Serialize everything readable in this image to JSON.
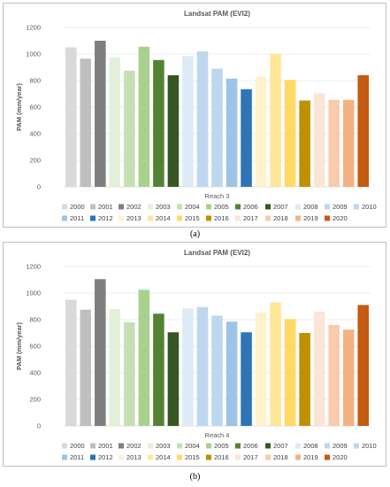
{
  "chart_data": [
    {
      "type": "bar",
      "title": "Landsat PAM (EVI2)",
      "ylabel": "PAM (mm/year)",
      "xlabel": "",
      "category": "Reach 3",
      "ylim": [
        0,
        1200
      ],
      "yticks": [
        0,
        200,
        400,
        600,
        800,
        1000,
        1200
      ],
      "grid": true,
      "legend_position": "bottom",
      "series": [
        {
          "name": "2000",
          "values": [
            1050
          ]
        },
        {
          "name": "2001",
          "values": [
            965
          ]
        },
        {
          "name": "2002",
          "values": [
            1100
          ]
        },
        {
          "name": "2003",
          "values": [
            975
          ]
        },
        {
          "name": "2004",
          "values": [
            875
          ]
        },
        {
          "name": "2005",
          "values": [
            1055
          ]
        },
        {
          "name": "2006",
          "values": [
            955
          ]
        },
        {
          "name": "2007",
          "values": [
            840
          ]
        },
        {
          "name": "2008",
          "values": [
            985
          ]
        },
        {
          "name": "2009",
          "values": [
            1020
          ]
        },
        {
          "name": "2010",
          "values": [
            890
          ]
        },
        {
          "name": "2011",
          "values": [
            815
          ]
        },
        {
          "name": "2012",
          "values": [
            735
          ]
        },
        {
          "name": "2013",
          "values": [
            830
          ]
        },
        {
          "name": "2014",
          "values": [
            1000
          ]
        },
        {
          "name": "2015",
          "values": [
            805
          ]
        },
        {
          "name": "2016",
          "values": [
            650
          ]
        },
        {
          "name": "2017",
          "values": [
            705
          ]
        },
        {
          "name": "2018",
          "values": [
            655
          ]
        },
        {
          "name": "2019",
          "values": [
            655
          ]
        },
        {
          "name": "2020",
          "values": [
            840
          ]
        }
      ]
    },
    {
      "type": "bar",
      "title": "Landsat PAM (EVI2)",
      "ylabel": "PAM (mm/year)",
      "xlabel": "",
      "category": "Reach 4",
      "ylim": [
        0,
        1200
      ],
      "yticks": [
        0,
        200,
        400,
        600,
        800,
        1000,
        1200
      ],
      "grid": true,
      "legend_position": "bottom",
      "series": [
        {
          "name": "2000",
          "values": [
            950
          ]
        },
        {
          "name": "2001",
          "values": [
            875
          ]
        },
        {
          "name": "2002",
          "values": [
            1105
          ]
        },
        {
          "name": "2003",
          "values": [
            880
          ]
        },
        {
          "name": "2004",
          "values": [
            780
          ]
        },
        {
          "name": "2005",
          "values": [
            1025
          ]
        },
        {
          "name": "2006",
          "values": [
            845
          ]
        },
        {
          "name": "2007",
          "values": [
            705
          ]
        },
        {
          "name": "2008",
          "values": [
            885
          ]
        },
        {
          "name": "2009",
          "values": [
            895
          ]
        },
        {
          "name": "2010",
          "values": [
            830
          ]
        },
        {
          "name": "2011",
          "values": [
            785
          ]
        },
        {
          "name": "2012",
          "values": [
            705
          ]
        },
        {
          "name": "2013",
          "values": [
            855
          ]
        },
        {
          "name": "2014",
          "values": [
            930
          ]
        },
        {
          "name": "2015",
          "values": [
            805
          ]
        },
        {
          "name": "2016",
          "values": [
            700
          ]
        },
        {
          "name": "2017",
          "values": [
            860
          ]
        },
        {
          "name": "2018",
          "values": [
            760
          ]
        },
        {
          "name": "2019",
          "values": [
            725
          ]
        },
        {
          "name": "2020",
          "values": [
            910
          ]
        }
      ]
    }
  ],
  "colors": [
    "#d9d9d9",
    "#bfbfbf",
    "#7f7f7f",
    "#e2f0d9",
    "#a9d18e",
    "#548235",
    "#375623",
    "#ddebf7",
    "#bdd7ee",
    "#9dc3e6",
    "#2e75b6",
    "#fff2cc",
    "#ffe699",
    "#ffd966",
    "#bf9000",
    "#fbe5d6",
    "#f8cbad",
    "#f4b183",
    "#c55a11"
  ],
  "bar_colors": [
    "#d9d9d9",
    "#bfbfbf",
    "#7f7f7f",
    "#e2f0d9",
    "#c5e0b4",
    "#a9d18e",
    "#548235",
    "#375623",
    "#ddebf7",
    "#bdd7ee",
    "#bdd7ee",
    "#9dc3e6",
    "#2e75b6",
    "#fff2cc",
    "#ffe699",
    "#ffd966",
    "#bf9000",
    "#fbe5d6",
    "#f8cbad",
    "#f4b183",
    "#c55a11"
  ],
  "captions": [
    "(a)",
    "(b)"
  ]
}
